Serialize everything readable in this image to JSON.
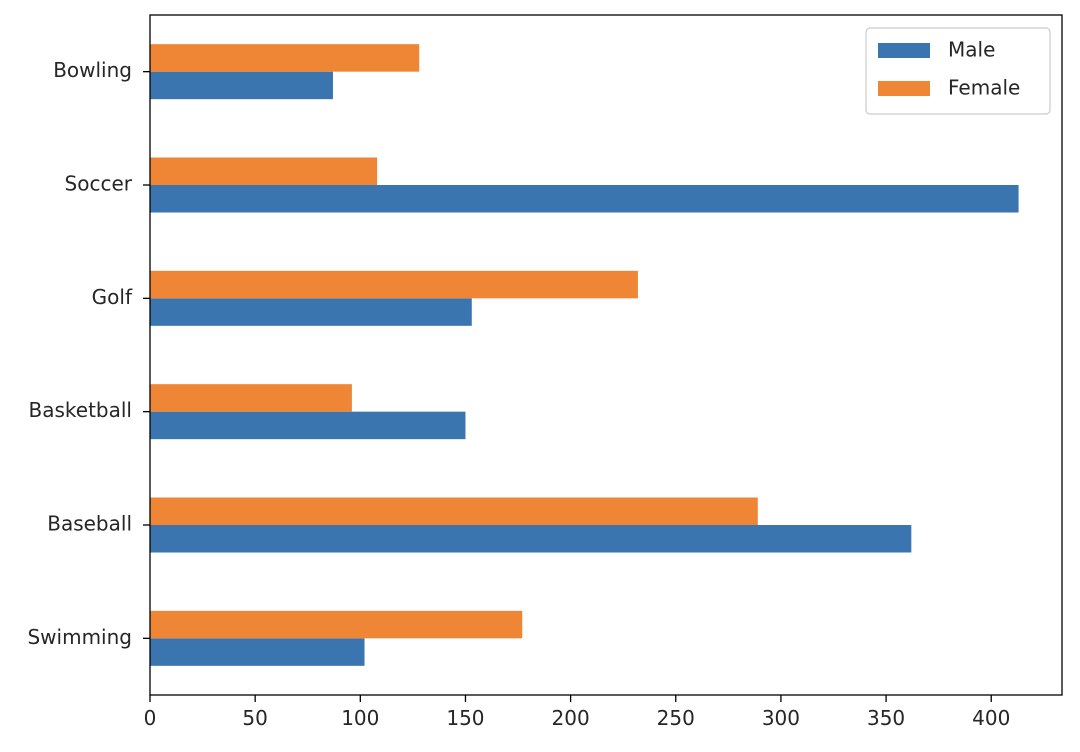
{
  "chart_data": {
    "type": "bar",
    "orientation": "horizontal",
    "categories": [
      "Swimming",
      "Baseball",
      "Basketball",
      "Golf",
      "Soccer",
      "Bowling"
    ],
    "series": [
      {
        "name": "Male",
        "color": "#3a75b0",
        "values": [
          102,
          362,
          150,
          153,
          413,
          87
        ]
      },
      {
        "name": "Female",
        "color": "#ef8636",
        "values": [
          177,
          289,
          96,
          232,
          108,
          128
        ]
      }
    ],
    "x_ticks": [
      0,
      50,
      100,
      150,
      200,
      250,
      300,
      350,
      400
    ],
    "xlim": [
      0,
      433.65
    ],
    "title": "",
    "xlabel": "",
    "ylabel": "",
    "grid": false,
    "legend_position": "top-right"
  }
}
